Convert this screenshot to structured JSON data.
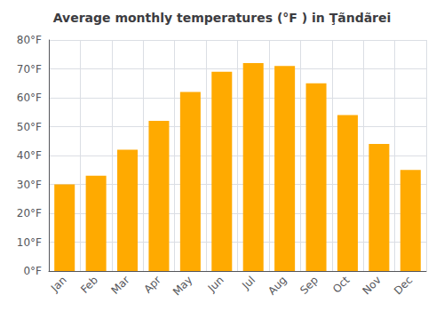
{
  "chart_data": {
    "type": "bar",
    "title": "Average monthly temperatures (°F ) in Ţãndãrei",
    "categories": [
      "Jan",
      "Feb",
      "Mar",
      "Apr",
      "May",
      "Jun",
      "Jul",
      "Aug",
      "Sep",
      "Oct",
      "Nov",
      "Dec"
    ],
    "values": [
      30,
      33,
      42,
      52,
      62,
      69,
      72,
      71,
      65,
      54,
      44,
      35
    ],
    "color": "#FFAA00",
    "ylim": [
      0,
      80
    ],
    "yticks": [
      {
        "value": 0,
        "label": "0°F"
      },
      {
        "value": 10,
        "label": "10°F"
      },
      {
        "value": 20,
        "label": "20°F"
      },
      {
        "value": 30,
        "label": "30°F"
      },
      {
        "value": 40,
        "label": "40°F"
      },
      {
        "value": 50,
        "label": "50°F"
      },
      {
        "value": 60,
        "label": "60°F"
      },
      {
        "value": 70,
        "label": "70°F"
      },
      {
        "value": 80,
        "label": "80°F"
      }
    ],
    "grid": true
  }
}
